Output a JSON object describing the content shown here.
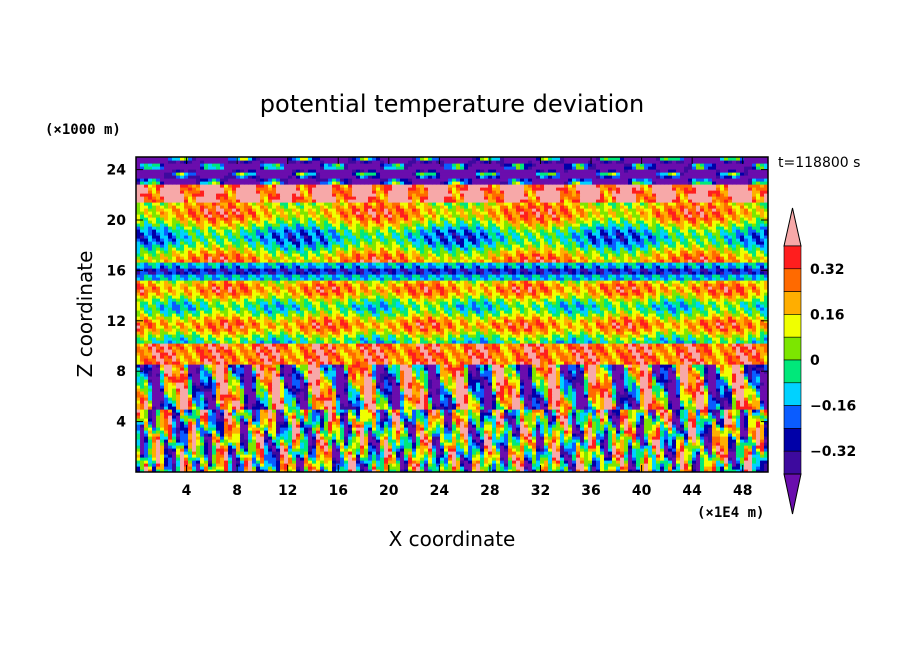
{
  "chart_data": {
    "type": "heatmap",
    "title": "potential temperature deviation",
    "xlabel": "X coordinate",
    "ylabel": "Z coordinate",
    "x_unit": "(×1E4 m)",
    "y_unit": "(×1000 m)",
    "time_label": "t=118800 s",
    "xlim": [
      0,
      50
    ],
    "ylim": [
      0,
      25
    ],
    "x_ticks": [
      4,
      8,
      12,
      16,
      20,
      24,
      28,
      32,
      36,
      40,
      44,
      48
    ],
    "y_ticks": [
      4,
      8,
      12,
      16,
      20,
      24
    ],
    "colorbar": {
      "levels": [
        -0.4,
        -0.32,
        -0.24,
        -0.16,
        -0.08,
        0,
        0.08,
        0.16,
        0.24,
        0.32,
        0.4
      ],
      "tick_labels": [
        "0.32",
        "0.16",
        "0",
        "−0.16",
        "−0.32"
      ],
      "tick_values": [
        0.32,
        0.16,
        0,
        -0.16,
        -0.32
      ],
      "colors": [
        "#6a0dad",
        "#3d0a9e",
        "#0000a8",
        "#0a5cff",
        "#00d2ff",
        "#00e87a",
        "#7ce600",
        "#f0ff00",
        "#ffae00",
        "#ff6a00",
        "#ff1e1e",
        "#f7a8a8"
      ],
      "extend": "both"
    }
  }
}
